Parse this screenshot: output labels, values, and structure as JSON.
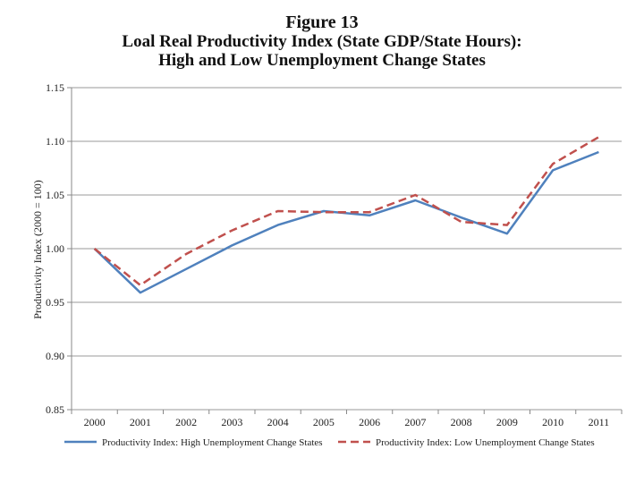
{
  "figure": {
    "number_label": "Figure 13",
    "title_line1": "Loal Real Productivity Index (State GDP/State Hours):",
    "title_line2": "High and Low Unemployment Change States"
  },
  "chart_data": {
    "type": "line",
    "title": "Loal Real Productivity Index (State GDP/State Hours): High and Low Unemployment Change States",
    "xlabel": "",
    "ylabel": "Productivity Index (2000 = 100)",
    "categories": [
      "2000",
      "2001",
      "2002",
      "2003",
      "2004",
      "2005",
      "2006",
      "2007",
      "2008",
      "2009",
      "2010",
      "2011"
    ],
    "ylim": [
      0.85,
      1.15
    ],
    "yticks": [
      "0.85",
      "0.90",
      "0.95",
      "1.00",
      "1.05",
      "1.10",
      "1.15"
    ],
    "ytick_values": [
      0.85,
      0.9,
      0.95,
      1.0,
      1.05,
      1.1,
      1.15
    ],
    "grid": true,
    "legend_position": "bottom",
    "series": [
      {
        "name": "Productivity Index:  High Unemployment Change States",
        "color": "#4f81bd",
        "style": "solid",
        "values": [
          1.0,
          0.959,
          0.981,
          1.003,
          1.022,
          1.035,
          1.031,
          1.045,
          1.029,
          1.014,
          1.073,
          1.09
        ]
      },
      {
        "name": "Productivity Index:  Low Unemployment Change States",
        "color": "#c0504d",
        "style": "dashed",
        "values": [
          1.0,
          0.966,
          0.995,
          1.017,
          1.035,
          1.034,
          1.034,
          1.05,
          1.025,
          1.022,
          1.079,
          1.104
        ]
      }
    ]
  }
}
